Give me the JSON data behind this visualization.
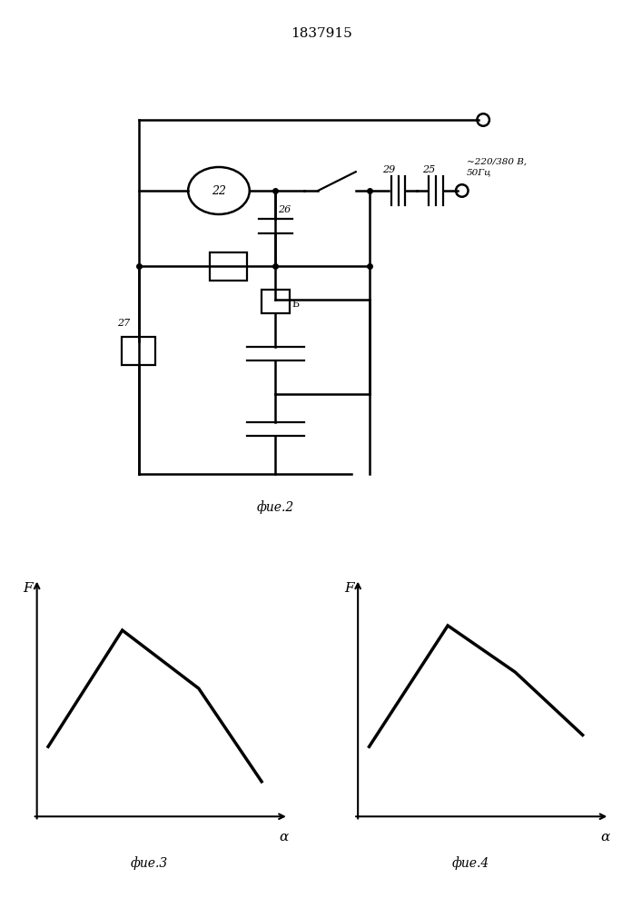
{
  "title": "1837915",
  "bg_color": "#ffffff",
  "fig2_label": "фие.2",
  "fig3_label": "фие.3",
  "fig4_label": "фие.4",
  "voltage_label": "~220/380 В,\n50Гц",
  "fig3_curve_x": [
    0.05,
    0.38,
    0.72,
    1.0
  ],
  "fig3_curve_y": [
    0.3,
    0.8,
    0.55,
    0.15
  ],
  "fig4_curve_x": [
    0.05,
    0.4,
    0.7,
    1.0
  ],
  "fig4_curve_y": [
    0.3,
    0.82,
    0.62,
    0.35
  ]
}
